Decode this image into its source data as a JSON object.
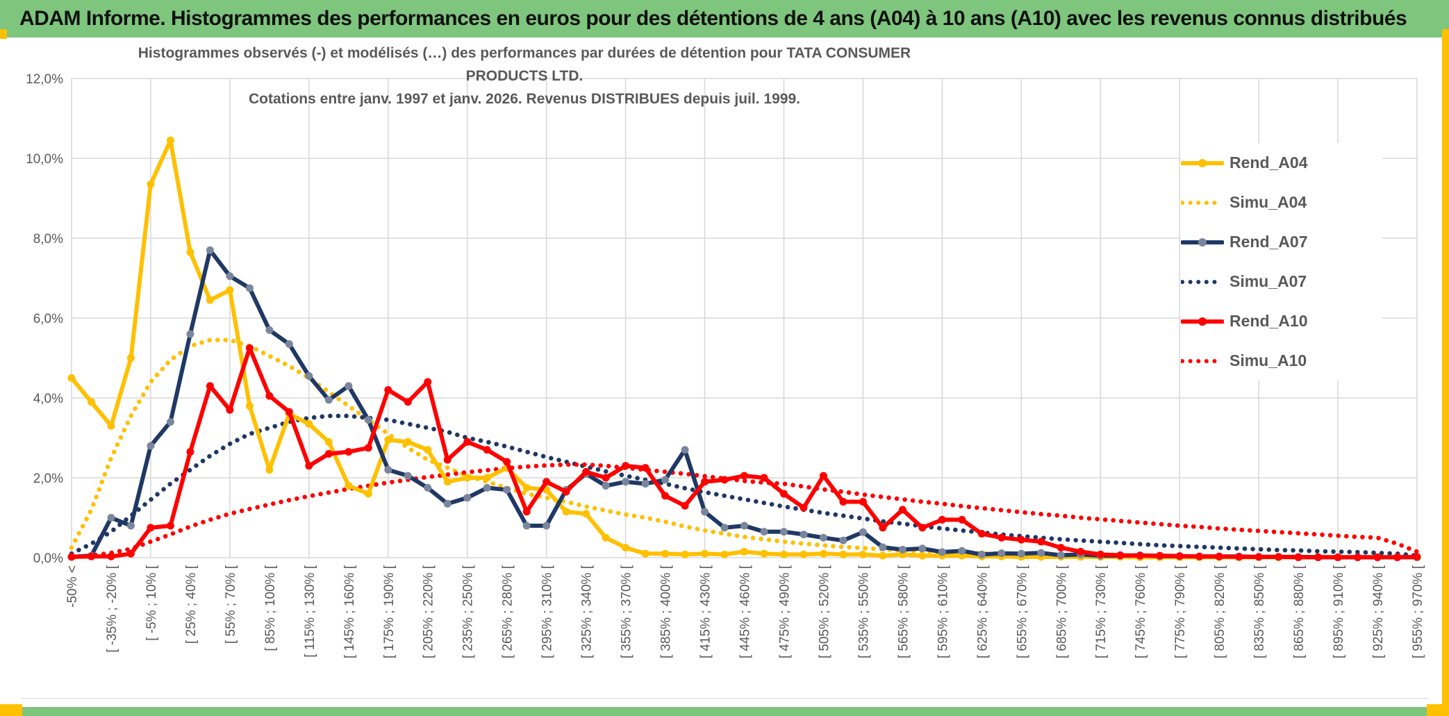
{
  "banner": {
    "title": "ADAM Informe. Histogrammes des performances en euros pour des détentions de 4 ans (A04) à 10 ans (A10) avec les revenus connus distribués"
  },
  "chart_data": {
    "type": "line",
    "title_line1": "Histogrammes observés (-) et modélisés (…) des performances par durées de détention pour TATA CONSUMER PRODUCTS LTD.",
    "title_line2": "Cotations entre janv. 1997 et janv. 2026. Revenus DISTRIBUES depuis juil. 1999.",
    "ylabel": "",
    "xlabel": "",
    "ylim": [
      0,
      12
    ],
    "grid": true,
    "legend_position": "right",
    "y_ticks": [
      "12,0%",
      "10,0%",
      "8,0%",
      "6,0%",
      "4,0%",
      "2,0%",
      "0,0%"
    ],
    "x_tick_labels": [
      "-50% <",
      "[ -35% ; -20% [",
      "[ -5% ; 10% [",
      "[ 25% ; 40% [",
      "[ 55% ; 70% [",
      "[ 85% ; 100% [",
      "[ 115% ; 130% [",
      "[ 145% ; 160% [",
      "[ 175% ; 190% [",
      "[ 205% ; 220% [",
      "[ 235% ; 250% [",
      "[ 265% ; 280% [",
      "[ 295% ; 310% [",
      "[ 325% ; 340% [",
      "[ 355% ; 370% [",
      "[ 385% ; 400% [",
      "[ 415% ; 430% [",
      "[ 445% ; 460% [",
      "[ 475% ; 490% [",
      "[ 505% ; 520% [",
      "[ 535% ; 550% [",
      "[ 565% ; 580% [",
      "[ 595% ; 610% [",
      "[ 625% ; 640% [",
      "[ 655% ; 670% [",
      "[ 685% ; 700% [",
      "[ 715% ; 730% [",
      "[ 745% ; 760% [",
      "[ 775% ; 790% [",
      "[ 805% ; 820% [",
      "[ 835% ; 850% [",
      "[ 865% ; 880% [",
      "[ 895% ; 910% [",
      "[ 925% ; 940% [",
      "[ 955% ; 970% ["
    ],
    "n_bins": 69,
    "bin_width_pct": 15,
    "series": [
      {
        "name": "Rend_A04",
        "color": "#FFC000",
        "style": "solid",
        "marker": true,
        "values": [
          4.5,
          3.9,
          3.3,
          5.0,
          9.35,
          10.45,
          7.65,
          6.45,
          6.7,
          3.8,
          2.2,
          3.6,
          3.35,
          2.9,
          1.8,
          1.6,
          2.95,
          2.9,
          2.7,
          1.9,
          2.0,
          2.0,
          2.25,
          1.75,
          1.7,
          1.15,
          1.1,
          0.5,
          0.25,
          0.1,
          0.1,
          0.08,
          0.1,
          0.08,
          0.15,
          0.1,
          0.08,
          0.08,
          0.1,
          0.08,
          0.08,
          0.05,
          0.08,
          0.05,
          0.05,
          0.05,
          0.03,
          0.03,
          0.02,
          0.02,
          0.02,
          0.02,
          0.02,
          0.02,
          0.01,
          0.01,
          0.01,
          0.01,
          0.01,
          0.01,
          0.01,
          0.01,
          0.01,
          0.01,
          0.01,
          0.01,
          0.01,
          0.01,
          0.01
        ]
      },
      {
        "name": "Simu_A04",
        "color": "#FFC000",
        "style": "dotted",
        "marker": false,
        "values": [
          0.25,
          1.2,
          2.5,
          3.55,
          4.4,
          4.95,
          5.3,
          5.45,
          5.45,
          5.3,
          5.05,
          4.8,
          4.5,
          4.15,
          3.8,
          3.45,
          3.1,
          2.75,
          2.45,
          2.25,
          2.05,
          1.9,
          1.75,
          1.6,
          1.5,
          1.4,
          1.28,
          1.18,
          1.08,
          1.0,
          0.9,
          0.78,
          0.68,
          0.6,
          0.52,
          0.46,
          0.4,
          0.35,
          0.31,
          0.27,
          0.24,
          0.21,
          0.18,
          0.16,
          0.14,
          0.12,
          0.11,
          0.1,
          0.09,
          0.08,
          0.07,
          0.06,
          0.06,
          0.05,
          0.05,
          0.04,
          0.04,
          0.03,
          0.03,
          0.03,
          0.02,
          0.02,
          0.02,
          0.02,
          0.01,
          0.01,
          0.01,
          0.01,
          0.01
        ]
      },
      {
        "name": "Rend_A07",
        "color": "#1F3864",
        "style": "solid",
        "marker": true,
        "values": [
          0.02,
          0.05,
          1.0,
          0.8,
          2.8,
          3.4,
          5.6,
          7.7,
          7.05,
          6.75,
          5.7,
          5.35,
          4.55,
          3.95,
          4.3,
          3.45,
          2.2,
          2.05,
          1.75,
          1.35,
          1.5,
          1.75,
          1.7,
          0.8,
          0.8,
          1.7,
          2.1,
          1.8,
          1.9,
          1.85,
          1.95,
          2.7,
          1.15,
          0.75,
          0.8,
          0.65,
          0.65,
          0.58,
          0.5,
          0.43,
          0.64,
          0.26,
          0.2,
          0.23,
          0.14,
          0.17,
          0.08,
          0.11,
          0.1,
          0.12,
          0.06,
          0.08,
          0.05,
          0.05,
          0.06,
          0.04,
          0.04,
          0.03,
          0.03,
          0.03,
          0.02,
          0.02,
          0.02,
          0.01,
          0.01,
          0.01,
          0.01,
          0.01,
          0.01
        ]
      },
      {
        "name": "Simu_A07",
        "color": "#1F3864",
        "style": "dotted",
        "marker": false,
        "values": [
          0.1,
          0.35,
          0.65,
          1.05,
          1.45,
          1.85,
          2.2,
          2.55,
          2.85,
          3.1,
          3.25,
          3.4,
          3.5,
          3.55,
          3.55,
          3.5,
          3.45,
          3.35,
          3.25,
          3.15,
          3.0,
          2.9,
          2.78,
          2.65,
          2.52,
          2.4,
          2.28,
          2.16,
          2.05,
          1.95,
          1.85,
          1.74,
          1.64,
          1.55,
          1.46,
          1.37,
          1.28,
          1.2,
          1.12,
          1.05,
          0.98,
          0.91,
          0.85,
          0.79,
          0.73,
          0.68,
          0.63,
          0.58,
          0.54,
          0.5,
          0.46,
          0.43,
          0.4,
          0.37,
          0.34,
          0.31,
          0.29,
          0.27,
          0.25,
          0.23,
          0.21,
          0.19,
          0.18,
          0.16,
          0.15,
          0.14,
          0.12,
          0.1,
          0.05
        ]
      },
      {
        "name": "Rend_A10",
        "color": "#FF0000",
        "style": "solid",
        "marker": true,
        "values": [
          0.02,
          0.03,
          0.03,
          0.1,
          0.75,
          0.8,
          2.65,
          4.3,
          3.7,
          5.25,
          4.05,
          3.65,
          2.3,
          2.6,
          2.65,
          2.75,
          4.2,
          3.9,
          4.4,
          2.45,
          2.9,
          2.7,
          2.4,
          1.15,
          1.9,
          1.65,
          2.15,
          2.0,
          2.3,
          2.25,
          1.55,
          1.3,
          1.9,
          1.95,
          2.05,
          2.0,
          1.6,
          1.25,
          2.05,
          1.4,
          1.4,
          0.75,
          1.2,
          0.75,
          0.95,
          0.95,
          0.6,
          0.5,
          0.45,
          0.4,
          0.25,
          0.15,
          0.08,
          0.06,
          0.05,
          0.05,
          0.04,
          0.03,
          0.03,
          0.02,
          0.02,
          0.02,
          0.01,
          0.01,
          0.01,
          0.01,
          0.01,
          0.01,
          0.02
        ]
      },
      {
        "name": "Simu_A10",
        "color": "#FF0000",
        "style": "dotted",
        "marker": false,
        "values": [
          0.02,
          0.05,
          0.12,
          0.22,
          0.4,
          0.58,
          0.78,
          0.95,
          1.1,
          1.22,
          1.33,
          1.44,
          1.54,
          1.63,
          1.72,
          1.8,
          1.88,
          1.95,
          2.02,
          2.08,
          2.14,
          2.19,
          2.24,
          2.28,
          2.31,
          2.33,
          2.33,
          2.3,
          2.25,
          2.2,
          2.15,
          2.1,
          2.04,
          1.98,
          1.92,
          1.88,
          1.85,
          1.78,
          1.71,
          1.65,
          1.58,
          1.52,
          1.46,
          1.4,
          1.35,
          1.29,
          1.24,
          1.19,
          1.14,
          1.09,
          1.05,
          1.0,
          0.96,
          0.92,
          0.88,
          0.84,
          0.8,
          0.77,
          0.73,
          0.7,
          0.67,
          0.64,
          0.61,
          0.58,
          0.55,
          0.52,
          0.5,
          0.35,
          0.15
        ]
      }
    ],
    "colors": {
      "grid": "#D9D9D9",
      "axis_text": "#595959",
      "banner_green": "#7EC57D",
      "accent_gold": "#FFC000",
      "marker_gray_a07": "#7B869C"
    }
  }
}
